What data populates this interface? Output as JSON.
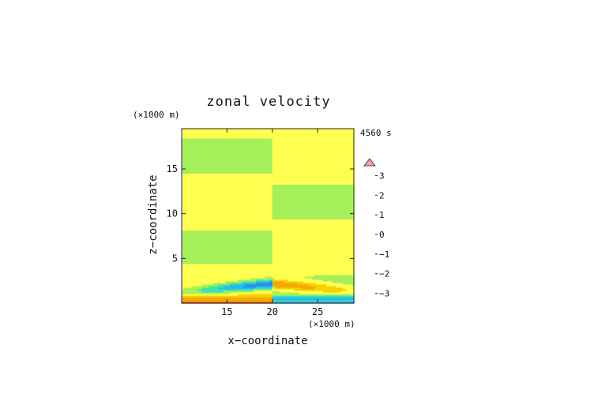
{
  "chart_data": {
    "type": "heatmap",
    "title": "zonal velocity",
    "time_label": "4560 s",
    "xlabel": "x−coordinate",
    "ylabel": "z−coordinate",
    "x_unit": "(×1000 m)",
    "y_unit": "(×1000 m)",
    "xlim": [
      10,
      29
    ],
    "ylim": [
      0,
      19.5
    ],
    "x_ticks": [
      15,
      20,
      25
    ],
    "y_ticks": [
      5,
      10,
      15
    ],
    "colorbar": {
      "levels": [
        -3.5,
        -3.0,
        -2.5,
        -2.0,
        -1.5,
        -1.0,
        -0.5,
        0.0,
        0.5,
        1.0,
        1.5,
        2.0,
        2.5,
        3.0,
        3.5
      ],
      "tick_labels": [
        -3,
        -2,
        -1,
        0,
        1,
        2,
        3
      ],
      "colors": [
        "#0d0d80",
        "#1f33d6",
        "#2d62e8",
        "#2b8fe8",
        "#23bcec",
        "#3be4b3",
        "#a5f05a",
        "#ffff50",
        "#f5d200",
        "#f5a800",
        "#f08020",
        "#f03c14",
        "#ee2222",
        "#f2a2a2"
      ],
      "extend": "max"
    },
    "field_description": {
      "layers": [
        {
          "z_range": [
            0,
            1.0
          ],
          "left_of_20": "0.5 to 1 near bed, -1 band",
          "right_of_20": "-1 band near bed"
        },
        {
          "z_range": [
            1,
            3.2
          ],
          "left_of_20": "negative wave, min about -2",
          "right_of_20": "positive wave, max about 1.5"
        },
        {
          "z_range": [
            3.2,
            19.5
          ],
          "pattern": "alternating bands of about 0 to 0.5, sign flips across x = 20"
        }
      ]
    }
  }
}
